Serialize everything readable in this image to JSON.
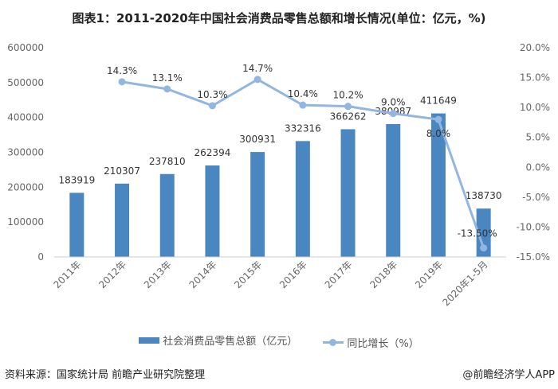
{
  "title": "图表1：2011-2020年中国社会消费品零售总额和增长情况(单位：亿元，%)",
  "source": "资料来源：国家统计局 前瞻产业研究院整理",
  "brand": "@前瞻经济学人APP",
  "chart_data": {
    "type": "bar+line",
    "categories": [
      "2011年",
      "2012年",
      "2013年",
      "2014年",
      "2015年",
      "2016年",
      "2017年",
      "2018年",
      "2019年",
      "2020年1-5月"
    ],
    "series": [
      {
        "name": "社会消费品零售总额（亿元）",
        "type": "bar",
        "axis": "left",
        "color": "#4a86c0",
        "values": [
          183919,
          210307,
          237810,
          262394,
          300931,
          332316,
          366262,
          380987,
          411649,
          138730
        ],
        "labels": [
          "183919",
          "210307",
          "237810",
          "262394",
          "300931",
          "332316",
          "366262",
          "380987",
          "411649",
          "138730"
        ]
      },
      {
        "name": "同比增长（%）",
        "type": "line",
        "axis": "right",
        "color": "#92b6e2",
        "values": [
          null,
          14.3,
          13.1,
          10.3,
          14.7,
          10.4,
          10.2,
          9.0,
          8.0,
          -13.5
        ],
        "labels": [
          "",
          "14.3%",
          "13.1%",
          "10.3%",
          "14.7%",
          "10.4%",
          "10.2%",
          "9.0%",
          "8.0%",
          "-13.50%"
        ]
      }
    ],
    "left_axis": {
      "ylim": [
        0,
        600000
      ],
      "ticks": [
        "0",
        "100000",
        "200000",
        "300000",
        "400000",
        "500000",
        "600000"
      ]
    },
    "right_axis": {
      "ylim": [
        -15,
        20
      ],
      "ticks": [
        "-15.0%",
        "-10.0%",
        "-5.0%",
        "0.0%",
        "5.0%",
        "10.0%",
        "15.0%",
        "20.0%"
      ]
    },
    "grid": false,
    "legend": "bottom"
  }
}
